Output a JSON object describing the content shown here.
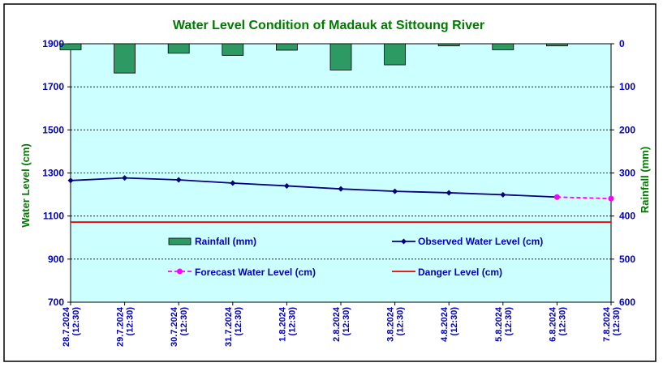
{
  "chart_data": {
    "type": "bar+line",
    "title": "Water Level Condition of Madauk at Sittoung River",
    "y_left_label": "Water Level (cm)",
    "y_right_label": "Rainfall (mm)",
    "y_left_range": [
      700,
      1900
    ],
    "y_left_ticks": [
      700,
      900,
      1100,
      1300,
      1500,
      1700,
      1900
    ],
    "y_right_range": [
      0,
      600
    ],
    "y_right_inverted": true,
    "y_right_ticks": [
      0,
      100,
      200,
      300,
      400,
      500,
      600
    ],
    "grid": true,
    "categories": [
      [
        "28.7.2024",
        "(12:30)"
      ],
      [
        "29.7.2024",
        "(12:30)"
      ],
      [
        "30.7.2024",
        "(12:30)"
      ],
      [
        "31.7.2024",
        "(12:30)"
      ],
      [
        "1.8.2024",
        "(12:30)"
      ],
      [
        "2.8.2024",
        "(12:30)"
      ],
      [
        "3.8.2024",
        "(12:30)"
      ],
      [
        "4.8.2024",
        "(12:30)"
      ],
      [
        "5.8.2024",
        "(12:30)"
      ],
      [
        "6.8.2024",
        "(12:30)"
      ],
      [
        "7.8.2024",
        "(12:30)"
      ]
    ],
    "series": [
      {
        "name": "Rainfall (mm)",
        "kind": "bar",
        "axis": "right",
        "color": "#2e9a63",
        "values": [
          14,
          68,
          22,
          27,
          15,
          61,
          49,
          5,
          14,
          5,
          null
        ]
      },
      {
        "name": "Observed Water Level (cm)",
        "kind": "line",
        "axis": "left",
        "color": "#000080",
        "values": [
          1265,
          1277,
          1268,
          1253,
          1240,
          1226,
          1215,
          1208,
          1199,
          1188,
          null
        ]
      },
      {
        "name": "Forecast Water Level (cm)",
        "kind": "dashed-line",
        "axis": "left",
        "color": "#ff00ff",
        "values": [
          null,
          null,
          null,
          null,
          null,
          null,
          null,
          null,
          null,
          1188,
          1181
        ]
      },
      {
        "name": "Danger Level (cm)",
        "kind": "hline",
        "axis": "left",
        "color": "#e00000",
        "value": 1072
      }
    ],
    "legend_placement": "inside-center",
    "plot_background": "#ccffff"
  }
}
